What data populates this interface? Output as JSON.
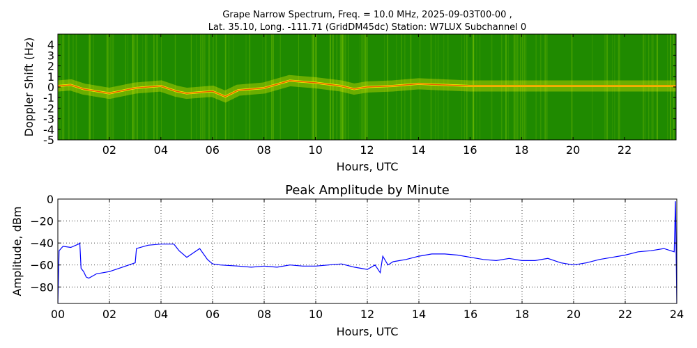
{
  "chart_data": [
    {
      "type": "heatmap",
      "title_line1": "Grape Narrow Spectrum, Freq. = 10.0 MHz, 2025-09-03T00-00 ,",
      "title_line2": "Lat.  35.10, Long. -111.71 (GridDM45dc) Station: W7LUX Subchannel 0",
      "xlabel": "Hours, UTC",
      "ylabel": "Doppler Shift (Hz)",
      "xlim": [
        0,
        24
      ],
      "ylim": [
        -5,
        5
      ],
      "x_ticks": [
        2,
        4,
        6,
        8,
        10,
        12,
        14,
        16,
        18,
        20,
        22
      ],
      "x_tick_labels": [
        "02",
        "04",
        "06",
        "08",
        "10",
        "12",
        "14",
        "16",
        "18",
        "20",
        "22"
      ],
      "y_ticks": [
        4,
        3,
        2,
        1,
        0,
        -1,
        -2,
        -3,
        -4,
        -5
      ],
      "y_tick_labels": [
        "4",
        "3",
        "2",
        "1",
        "0",
        "-1",
        "-2",
        "-3",
        "-4",
        "-5"
      ],
      "background_color": "#1f8a00",
      "trace_color": "#f6f000",
      "peak_color": "#e00000",
      "doppler_trace": [
        [
          0.0,
          0.1
        ],
        [
          0.5,
          0.2
        ],
        [
          1.0,
          -0.2
        ],
        [
          2.0,
          -0.6
        ],
        [
          3.0,
          -0.1
        ],
        [
          4.0,
          0.1
        ],
        [
          4.6,
          -0.4
        ],
        [
          5.0,
          -0.6
        ],
        [
          6.0,
          -0.4
        ],
        [
          6.5,
          -0.9
        ],
        [
          7.0,
          -0.3
        ],
        [
          8.0,
          -0.1
        ],
        [
          9.0,
          0.6
        ],
        [
          10.0,
          0.4
        ],
        [
          11.0,
          0.1
        ],
        [
          11.5,
          -0.2
        ],
        [
          12.0,
          0.0
        ],
        [
          13.0,
          0.1
        ],
        [
          14.0,
          0.3
        ],
        [
          15.0,
          0.2
        ],
        [
          16.0,
          0.1
        ],
        [
          18.0,
          0.1
        ],
        [
          20.0,
          0.1
        ],
        [
          22.0,
          0.1
        ],
        [
          24.0,
          0.1
        ]
      ],
      "grid": false
    },
    {
      "type": "line",
      "title": "Peak Amplitude by Minute",
      "xlabel": "Hours, UTC",
      "ylabel": "Amplitude, dBm",
      "xlim": [
        0,
        24
      ],
      "ylim": [
        -95,
        0
      ],
      "x_ticks": [
        0,
        2,
        4,
        6,
        8,
        10,
        12,
        14,
        16,
        18,
        20,
        22,
        24
      ],
      "x_tick_labels": [
        "00",
        "02",
        "04",
        "06",
        "08",
        "10",
        "12",
        "14",
        "16",
        "18",
        "20",
        "22",
        "24"
      ],
      "y_ticks": [
        0,
        -20,
        -40,
        -60,
        -80
      ],
      "y_tick_labels": [
        "0",
        "−20",
        "−40",
        "−60",
        "−80"
      ],
      "grid": true,
      "line_color": "#0000ff",
      "series": [
        {
          "x": [
            0.0,
            0.05,
            0.2,
            0.5,
            0.8,
            0.85,
            0.9,
            1.0,
            1.1,
            1.2,
            1.5,
            2.0,
            2.5,
            3.0,
            3.05,
            3.5,
            4.0,
            4.5,
            4.7,
            5.0,
            5.5,
            5.8,
            6.0,
            6.3,
            7.0,
            7.5,
            8.0,
            8.5,
            9.0,
            9.5,
            10.0,
            10.5,
            11.0,
            11.5,
            12.0,
            12.3,
            12.5,
            12.6,
            12.8,
            13.0,
            13.5,
            14.0,
            14.5,
            15.0,
            15.5,
            16.0,
            16.5,
            17.0,
            17.5,
            18.0,
            18.5,
            19.0,
            19.5,
            20.0,
            20.5,
            21.0,
            21.5,
            22.0,
            22.5,
            23.0,
            23.5,
            23.9,
            23.95,
            24.0
          ],
          "y": [
            -95,
            -47,
            -43,
            -44,
            -41,
            -40,
            -63,
            -66,
            -71,
            -72,
            -68,
            -66,
            -62,
            -58,
            -45,
            -42,
            -41,
            -41,
            -47,
            -53,
            -45,
            -55,
            -59,
            -60,
            -61,
            -62,
            -61,
            -62,
            -60,
            -61,
            -61,
            -60,
            -59,
            -62,
            -64,
            -60,
            -67,
            -52,
            -60,
            -57,
            -55,
            -52,
            -50,
            -50,
            -51,
            -53,
            -55,
            -56,
            -54,
            -56,
            -56,
            -54,
            -58,
            -60,
            -58,
            -55,
            -53,
            -51,
            -48,
            -47,
            -45,
            -48,
            -2,
            -95
          ]
        }
      ]
    }
  ]
}
